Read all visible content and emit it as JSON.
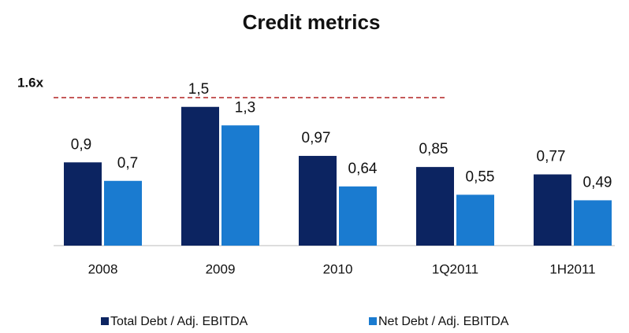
{
  "chart_data": {
    "type": "bar",
    "title": "Credit metrics",
    "categories": [
      "2008",
      "2009",
      "2010",
      "1Q2011",
      "1H2011"
    ],
    "series": [
      {
        "name": "Total Debt / Adj. EBITDA",
        "color": "#0c2461",
        "values": [
          0.9,
          1.5,
          0.97,
          0.85,
          0.77
        ],
        "value_labels": [
          "0,9",
          "1,5",
          "0,97",
          "0,85",
          "0,77"
        ]
      },
      {
        "name": "Net Debt / Adj. EBITDA",
        "color": "#1a7bd0",
        "values": [
          0.7,
          1.3,
          0.64,
          0.55,
          0.49
        ],
        "value_labels": [
          "0,7",
          "1,3",
          "0,64",
          "0,55",
          "0,49"
        ]
      }
    ],
    "ylim": [
      0,
      1.6
    ],
    "reference_line": {
      "value": 1.6,
      "label": "1.6x",
      "color": "#b22222"
    }
  }
}
